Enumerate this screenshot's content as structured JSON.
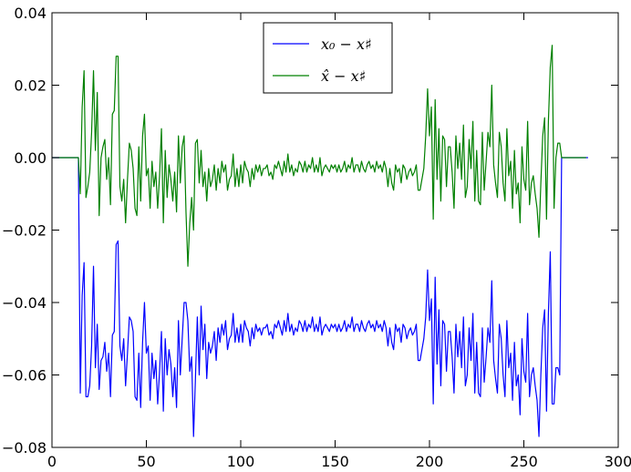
{
  "chart_data": {
    "type": "line",
    "title": "",
    "xlabel": "",
    "ylabel": "",
    "xlim": [
      0,
      300
    ],
    "ylim": [
      -0.08,
      0.04
    ],
    "x_ticks": [
      "0",
      "50",
      "100",
      "150",
      "200",
      "250",
      "300"
    ],
    "y_ticks": [
      "−0.08",
      "−0.06",
      "−0.04",
      "−0.02",
      "0.00",
      "0.02",
      "0.04"
    ],
    "grid": false,
    "legend_position": "top-center",
    "series": [
      {
        "name": "x₀ − x♯",
        "color": "#0000ff",
        "x_start": 0,
        "values": [
          0,
          0,
          0,
          0,
          0,
          0,
          0,
          0,
          0,
          0,
          0,
          0,
          0,
          0,
          0,
          -0.065,
          -0.038,
          -0.029,
          -0.066,
          -0.066,
          -0.063,
          -0.052,
          -0.03,
          -0.058,
          -0.046,
          -0.064,
          -0.056,
          -0.055,
          -0.051,
          -0.059,
          -0.054,
          -0.066,
          -0.049,
          -0.048,
          -0.024,
          -0.023,
          -0.052,
          -0.056,
          -0.05,
          -0.063,
          -0.054,
          -0.044,
          -0.045,
          -0.048,
          -0.066,
          -0.067,
          -0.054,
          -0.069,
          -0.051,
          -0.04,
          -0.054,
          -0.052,
          -0.067,
          -0.054,
          -0.061,
          -0.056,
          -0.068,
          -0.059,
          -0.048,
          -0.07,
          -0.05,
          -0.06,
          -0.053,
          -0.057,
          -0.066,
          -0.058,
          -0.069,
          -0.045,
          -0.06,
          -0.05,
          -0.04,
          -0.04,
          -0.045,
          -0.059,
          -0.055,
          -0.077,
          -0.061,
          -0.044,
          -0.06,
          -0.041,
          -0.053,
          -0.046,
          -0.061,
          -0.051,
          -0.054,
          -0.052,
          -0.048,
          -0.056,
          -0.047,
          -0.051,
          -0.046,
          -0.049,
          -0.045,
          -0.053,
          -0.05,
          -0.049,
          -0.043,
          -0.051,
          -0.047,
          -0.051,
          -0.046,
          -0.051,
          -0.045,
          -0.047,
          -0.048,
          -0.052,
          -0.047,
          -0.05,
          -0.046,
          -0.048,
          -0.047,
          -0.049,
          -0.047,
          -0.047,
          -0.046,
          -0.049,
          -0.048,
          -0.05,
          -0.046,
          -0.047,
          -0.045,
          -0.047,
          -0.049,
          -0.045,
          -0.048,
          -0.043,
          -0.048,
          -0.046,
          -0.049,
          -0.047,
          -0.048,
          -0.045,
          -0.046,
          -0.048,
          -0.045,
          -0.048,
          -0.046,
          -0.047,
          -0.044,
          -0.048,
          -0.046,
          -0.048,
          -0.044,
          -0.049,
          -0.047,
          -0.046,
          -0.047,
          -0.048,
          -0.046,
          -0.047,
          -0.046,
          -0.048,
          -0.046,
          -0.048,
          -0.047,
          -0.045,
          -0.048,
          -0.046,
          -0.047,
          -0.044,
          -0.048,
          -0.046,
          -0.046,
          -0.048,
          -0.045,
          -0.047,
          -0.048,
          -0.046,
          -0.045,
          -0.047,
          -0.046,
          -0.048,
          -0.045,
          -0.047,
          -0.046,
          -0.048,
          -0.045,
          -0.047,
          -0.052,
          -0.047,
          -0.051,
          -0.053,
          -0.046,
          -0.048,
          -0.047,
          -0.051,
          -0.046,
          -0.047,
          -0.05,
          -0.048,
          -0.047,
          -0.049,
          -0.048,
          -0.046,
          -0.056,
          -0.056,
          -0.053,
          -0.05,
          -0.044,
          -0.031,
          -0.045,
          -0.039,
          -0.068,
          -0.033,
          -0.057,
          -0.042,
          -0.063,
          -0.045,
          -0.046,
          -0.059,
          -0.048,
          -0.048,
          -0.055,
          -0.065,
          -0.046,
          -0.055,
          -0.048,
          -0.058,
          -0.044,
          -0.063,
          -0.06,
          -0.047,
          -0.056,
          -0.043,
          -0.065,
          -0.051,
          -0.065,
          -0.066,
          -0.047,
          -0.062,
          -0.055,
          -0.047,
          -0.051,
          -0.034,
          -0.056,
          -0.061,
          -0.065,
          -0.046,
          -0.05,
          -0.06,
          -0.066,
          -0.045,
          -0.058,
          -0.054,
          -0.067,
          -0.051,
          -0.063,
          -0.06,
          -0.071,
          -0.05,
          -0.059,
          -0.062,
          -0.043,
          -0.066,
          -0.06,
          -0.058,
          -0.063,
          -0.067,
          -0.077,
          -0.06,
          -0.047,
          -0.042,
          -0.07,
          -0.043,
          -0.026,
          -0.068,
          -0.068,
          -0.058,
          -0.058,
          -0.06,
          0,
          0,
          0,
          0,
          0,
          0,
          0,
          0,
          0,
          0,
          0,
          0,
          0,
          0,
          0
        ]
      },
      {
        "name": "x̂ − x♯",
        "color": "#008000",
        "x_start": 0,
        "values": [
          0,
          0,
          0,
          0,
          0,
          0,
          0,
          0,
          0,
          0,
          0,
          0,
          0,
          0,
          0,
          -0.01,
          0.014,
          0.024,
          -0.011,
          -0.008,
          -0.004,
          0.007,
          0.024,
          0.002,
          0.018,
          -0.016,
          0.0,
          0.003,
          0.005,
          -0.006,
          0.0,
          -0.013,
          0.012,
          0.013,
          0.028,
          0.028,
          -0.008,
          -0.012,
          -0.006,
          -0.018,
          -0.006,
          0.004,
          0.002,
          -0.003,
          -0.014,
          -0.016,
          0.003,
          -0.012,
          0.006,
          0.012,
          -0.005,
          -0.003,
          -0.014,
          -0.001,
          -0.008,
          -0.004,
          -0.014,
          -0.005,
          0.008,
          -0.018,
          0.002,
          -0.011,
          -0.002,
          -0.006,
          -0.012,
          -0.004,
          -0.015,
          0.006,
          -0.007,
          0.003,
          0.006,
          -0.015,
          -0.03,
          -0.018,
          -0.011,
          -0.02,
          0.004,
          0.005,
          -0.007,
          0.002,
          -0.008,
          -0.004,
          -0.012,
          -0.003,
          -0.008,
          -0.006,
          -0.002,
          -0.009,
          -0.003,
          -0.007,
          -0.001,
          -0.004,
          -0.002,
          -0.009,
          -0.006,
          -0.005,
          0.001,
          -0.008,
          -0.003,
          -0.008,
          -0.002,
          -0.007,
          -0.001,
          -0.003,
          -0.004,
          -0.008,
          -0.003,
          -0.006,
          -0.002,
          -0.004,
          -0.002,
          -0.005,
          -0.003,
          -0.003,
          -0.002,
          -0.005,
          -0.004,
          -0.006,
          -0.002,
          -0.003,
          -0.001,
          -0.003,
          -0.005,
          -0.001,
          -0.004,
          0.001,
          -0.004,
          -0.002,
          -0.005,
          -0.003,
          -0.004,
          -0.001,
          -0.002,
          -0.004,
          -0.001,
          -0.004,
          -0.002,
          -0.003,
          0.0,
          -0.004,
          -0.002,
          -0.004,
          0.0,
          -0.005,
          -0.003,
          -0.002,
          -0.003,
          -0.004,
          -0.002,
          -0.003,
          -0.002,
          -0.004,
          -0.002,
          -0.004,
          -0.003,
          -0.001,
          -0.004,
          -0.002,
          -0.003,
          0.0,
          -0.004,
          -0.002,
          -0.002,
          -0.004,
          -0.001,
          -0.003,
          -0.004,
          -0.002,
          -0.001,
          -0.003,
          -0.002,
          -0.004,
          -0.001,
          -0.003,
          -0.002,
          -0.004,
          -0.001,
          -0.003,
          -0.008,
          -0.003,
          -0.007,
          -0.009,
          -0.002,
          -0.004,
          -0.003,
          -0.007,
          -0.002,
          -0.003,
          -0.006,
          -0.004,
          -0.003,
          -0.005,
          -0.004,
          -0.002,
          -0.009,
          -0.009,
          -0.006,
          -0.003,
          0.006,
          0.019,
          0.006,
          0.014,
          -0.017,
          0.016,
          -0.006,
          0.008,
          -0.012,
          0.006,
          0.005,
          -0.008,
          0.003,
          0.003,
          -0.004,
          -0.014,
          0.006,
          -0.003,
          0.004,
          -0.006,
          0.009,
          -0.011,
          -0.008,
          0.005,
          -0.003,
          0.01,
          -0.012,
          0.002,
          -0.012,
          -0.013,
          0.007,
          -0.009,
          -0.001,
          0.007,
          0.003,
          0.02,
          -0.002,
          -0.007,
          -0.011,
          0.007,
          0.003,
          -0.007,
          -0.012,
          0.008,
          -0.005,
          -0.001,
          -0.014,
          0.002,
          -0.01,
          -0.007,
          -0.018,
          0.003,
          -0.006,
          -0.009,
          0.01,
          -0.013,
          -0.007,
          -0.005,
          -0.01,
          -0.014,
          -0.022,
          -0.007,
          0.006,
          0.011,
          -0.017,
          0.01,
          0.025,
          0.031,
          -0.014,
          0.0,
          0.004,
          0.004,
          0,
          0,
          0,
          0,
          0,
          0,
          0,
          0,
          0,
          0,
          0,
          0,
          0,
          0
        ]
      }
    ]
  }
}
